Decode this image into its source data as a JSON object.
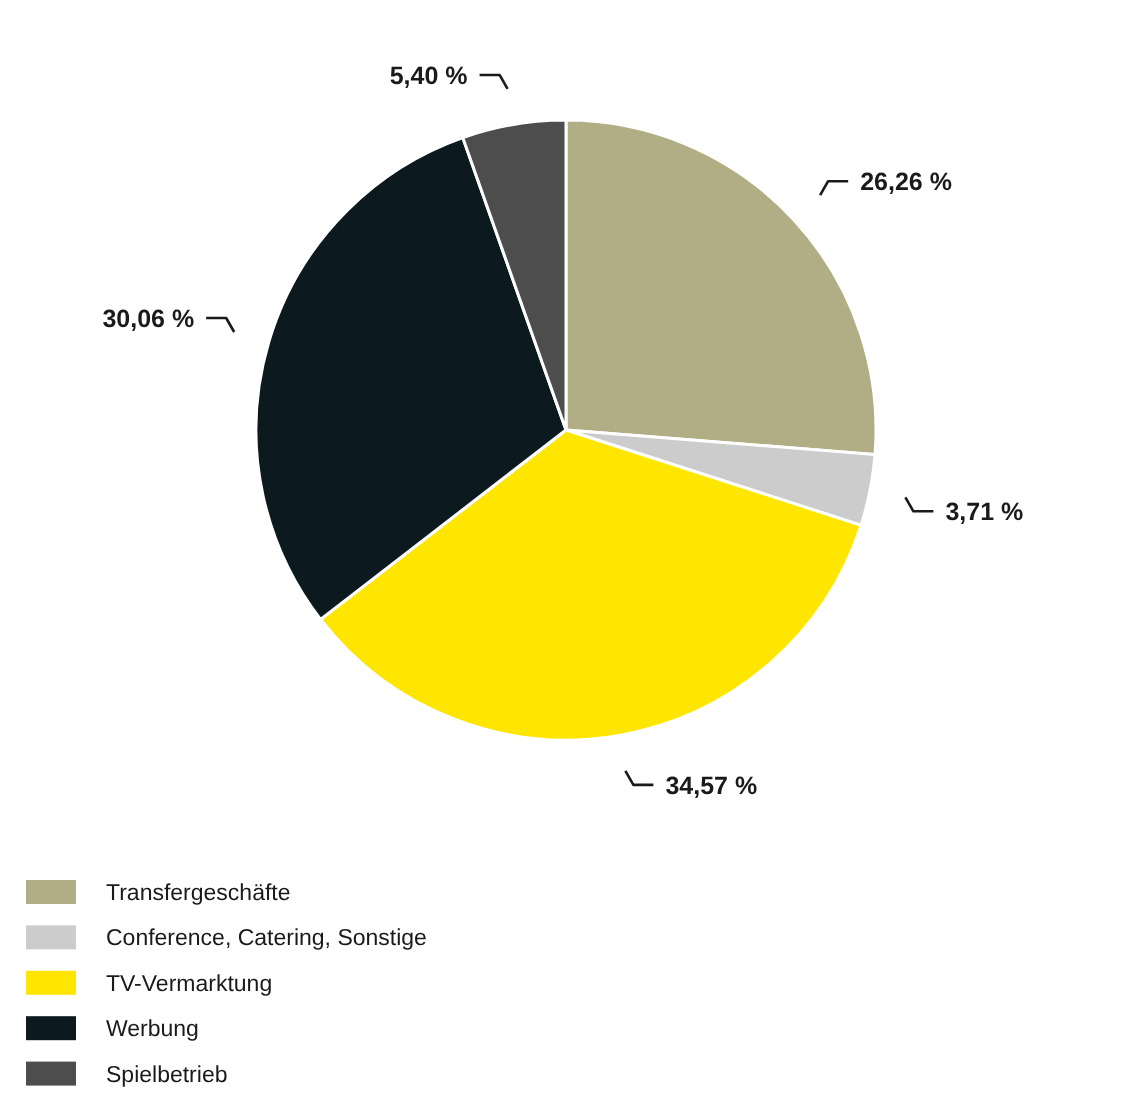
{
  "chart_data": {
    "type": "pie",
    "categories": [
      "Transfergeschäfte",
      "Conference, Catering, Sonstige",
      "TV-Vermarktung",
      "Werbung",
      "Spielbetrieb"
    ],
    "values": [
      26.26,
      3.71,
      34.57,
      30.06,
      5.4
    ],
    "colors": [
      "#b1ad85",
      "#cccccc",
      "#ffe600",
      "#0c1a1f",
      "#4d4d4d"
    ],
    "value_labels": [
      "26,26 %",
      "3,71 %",
      "34,57 %",
      "30,06 %",
      "5,40 %"
    ],
    "legend": "bottom left"
  }
}
